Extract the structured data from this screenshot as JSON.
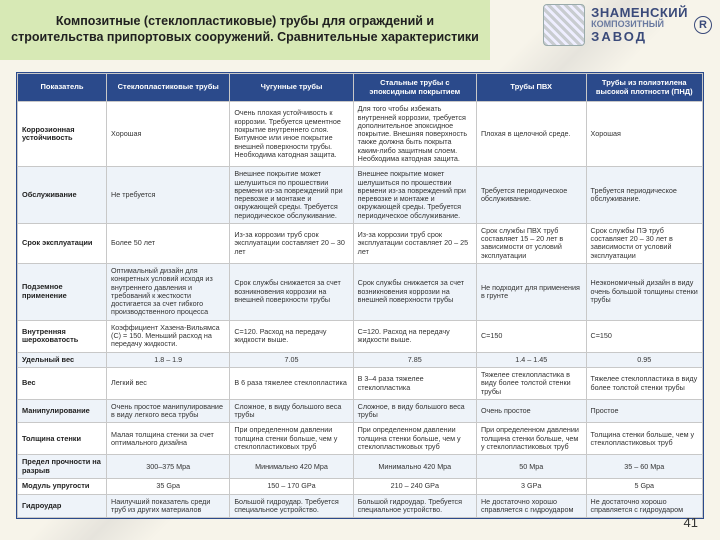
{
  "header": {
    "title": "Композитные (стеклопластиковые) трубы для ограждений и строительства припортовых сооружений. Сравнительные характеристики",
    "title_bg": "#d7e9b5",
    "logo_line1": "ЗНАМЕНСКИЙ",
    "logo_line2": "КОМПОЗИТНЫЙ",
    "logo_line3": "ЗАВОД",
    "logo_r": "R"
  },
  "watermark": "Композитный Завод",
  "table": {
    "header_bg": "#2b4a8b",
    "header_fg": "#ffffff",
    "band_bg": "#eef3f9",
    "border": "#c8c8c8",
    "columns": [
      "Показатель",
      "Стеклопластиковые трубы",
      "Чугунные трубы",
      "Стальные трубы с эпоксидным покрытием",
      "Трубы ПВХ",
      "Трубы из полиэтилена высокой плотности (ПНД)"
    ],
    "rows": [
      {
        "band": false,
        "label": "Коррозионная устойчивость",
        "cells": [
          "Хорошая",
          "Очень плохая устойчивость к коррозии. Требуется цементное покрытие внутреннего слоя. Битумное или иное покрытие внешней поверхности трубы. Необходима катодная защита.",
          "Для того чтобы избежать внутренней коррозии, требуется дополнительное эпоксидное покрытие. Внешняя поверхность также должна быть покрыта каким-либо защитным слоем. Необходима катодная защита.",
          "Плохая в щелочной среде.",
          "Хорошая"
        ]
      },
      {
        "band": true,
        "label": "Обслуживание",
        "cells": [
          "Не требуется",
          "Внешнее покрытие может шелушиться по прошествии времени из-за повреждений при перевозке и монтаже и окружающей среды. Требуется периодическое обслуживание.",
          "Внешнее покрытие может шелушиться по прошествии времени из-за повреждений при перевозке и монтаже и окружающей среды. Требуется периодическое обслуживание.",
          "Требуется периодическое обслуживание.",
          "Требуется периодическое обслуживание."
        ]
      },
      {
        "band": false,
        "label": "Срок эксплуатации",
        "cells": [
          "Более 50 лет",
          "Из-за коррозии труб срок эксплуатации составляет 20 – 30 лет",
          "Из-за коррозии труб срок эксплуатации составляет 20 – 25 лет",
          "Срок службы ПВХ труб составляет 15 – 20 лет в зависимости от условий эксплуатации",
          "Срок службы ПЭ труб составляет 20 – 30 лет в зависимости от условий эксплуатации"
        ]
      },
      {
        "band": true,
        "label": "Подземное применение",
        "cells": [
          "Оптимальный дизайн для конкретных условий исходя из внутреннего давления и требований к жесткости достигается за счет гибкого производственного процесса",
          "Срок службы снижается за счет возникновения коррозии на внешней поверхности трубы",
          "Срок службы снижается за счет возникновения коррозии на внешней поверхности трубы",
          "Не подходит для применения в грунте",
          "Неэкономичный дизайн в виду очень большой толщины стенки трубы"
        ]
      },
      {
        "band": false,
        "label": "Внутренняя шероховатость",
        "cells": [
          "Коэффициент Хазена-Вильямса (C) = 150. Меньший расход на передачу жидкости.",
          "C=120. Расход на передачу жидкости выше.",
          "C=120. Расход на передачу жидкости выше.",
          "C=150",
          "C=150"
        ]
      },
      {
        "band": true,
        "label": "Удельный вес",
        "cells": [
          "1.8 – 1.9",
          "7.05",
          "7.85",
          "1.4 – 1.45",
          "0.95"
        ],
        "center": true
      },
      {
        "band": false,
        "label": "Вес",
        "cells": [
          "Легкий вес",
          "В 6 раза тяжелее стеклопластика",
          "В 3–4 раза тяжелее стеклопластика",
          "Тяжелее стеклопластика в виду более толстой стенки трубы",
          "Тяжелее стеклопластика в виду более толстой стенки трубы"
        ]
      },
      {
        "band": true,
        "label": "Манипулирование",
        "cells": [
          "Очень простое манипулирование в виду легкого веса трубы",
          "Сложное, в виду большого веса трубы",
          "Сложное, в виду большого веса трубы",
          "Очень простое",
          "Простое"
        ]
      },
      {
        "band": false,
        "label": "Толщина стенки",
        "cells": [
          "Малая толщина стенки за счет оптимального дизайна",
          "При определенном давлении толщина стенки больше, чем у стеклопластиковых труб",
          "При определенном давлении толщина стенки больше, чем у стеклопластиковых труб",
          "При определенном давлении толщина стенки больше, чем у стеклопластиковых труб",
          "Толщина стенки больше, чем у стеклопластиковых труб"
        ]
      },
      {
        "band": true,
        "label": "Предел прочности на разрыв",
        "cells": [
          "300–375 Mpa",
          "Минимально 420 Mpa",
          "Минимально 420 Mpa",
          "50 Mpa",
          "35 – 60 Mpa"
        ],
        "center": true
      },
      {
        "band": false,
        "label": "Модуль упругости",
        "cells": [
          "35 Gpa",
          "150 – 170 GPa",
          "210 – 240 GPa",
          "3 GPa",
          "5 Gpa"
        ],
        "center": true
      },
      {
        "band": true,
        "label": "Гидроудар",
        "cells": [
          "Наилучший показатель среди труб из других материалов",
          "Большой гидроудар. Требуется специальное устройство.",
          "Большой гидроудар. Требуется специальное устройство.",
          "Не достаточно хорошо справляется с гидроударом",
          "Не достаточно хорошо справляется с гидроударом"
        ]
      }
    ]
  },
  "page_number": "41"
}
